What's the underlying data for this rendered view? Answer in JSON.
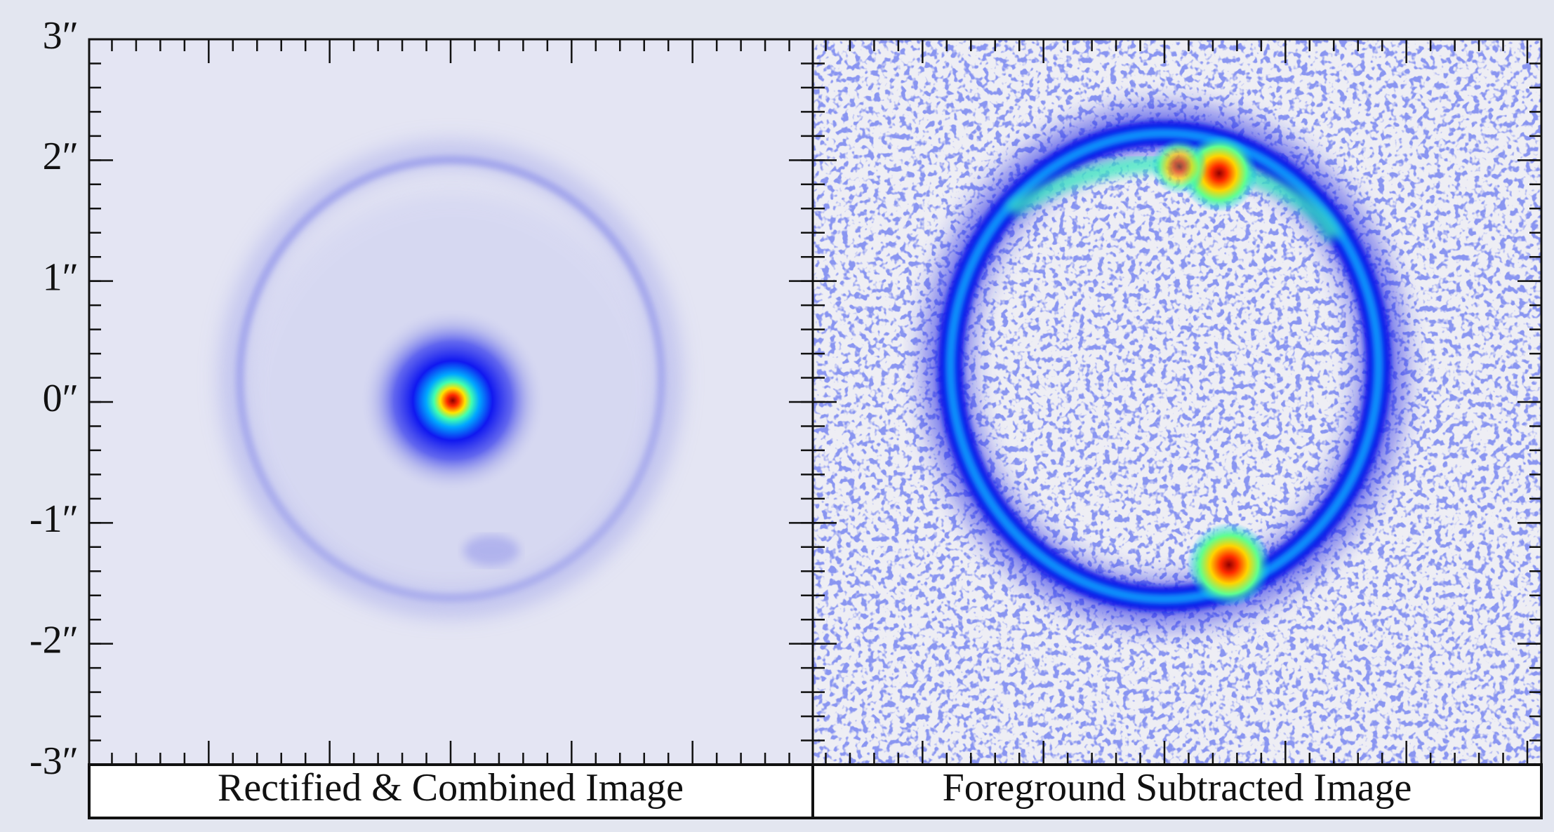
{
  "figure": {
    "y_axis": {
      "ylim": [
        -3,
        3
      ],
      "yticks": [
        {
          "value": 3,
          "label": "3″"
        },
        {
          "value": 2,
          "label": "2″"
        },
        {
          "value": 1,
          "label": "1″"
        },
        {
          "value": 0,
          "label": "0″"
        },
        {
          "value": -1,
          "label": "-1″"
        },
        {
          "value": -2,
          "label": "-2″"
        },
        {
          "value": -3,
          "label": "-3″"
        }
      ]
    },
    "panels": [
      {
        "label": "Rectified & Combined Image"
      },
      {
        "label": "Foreground Subtracted Image"
      }
    ]
  }
}
